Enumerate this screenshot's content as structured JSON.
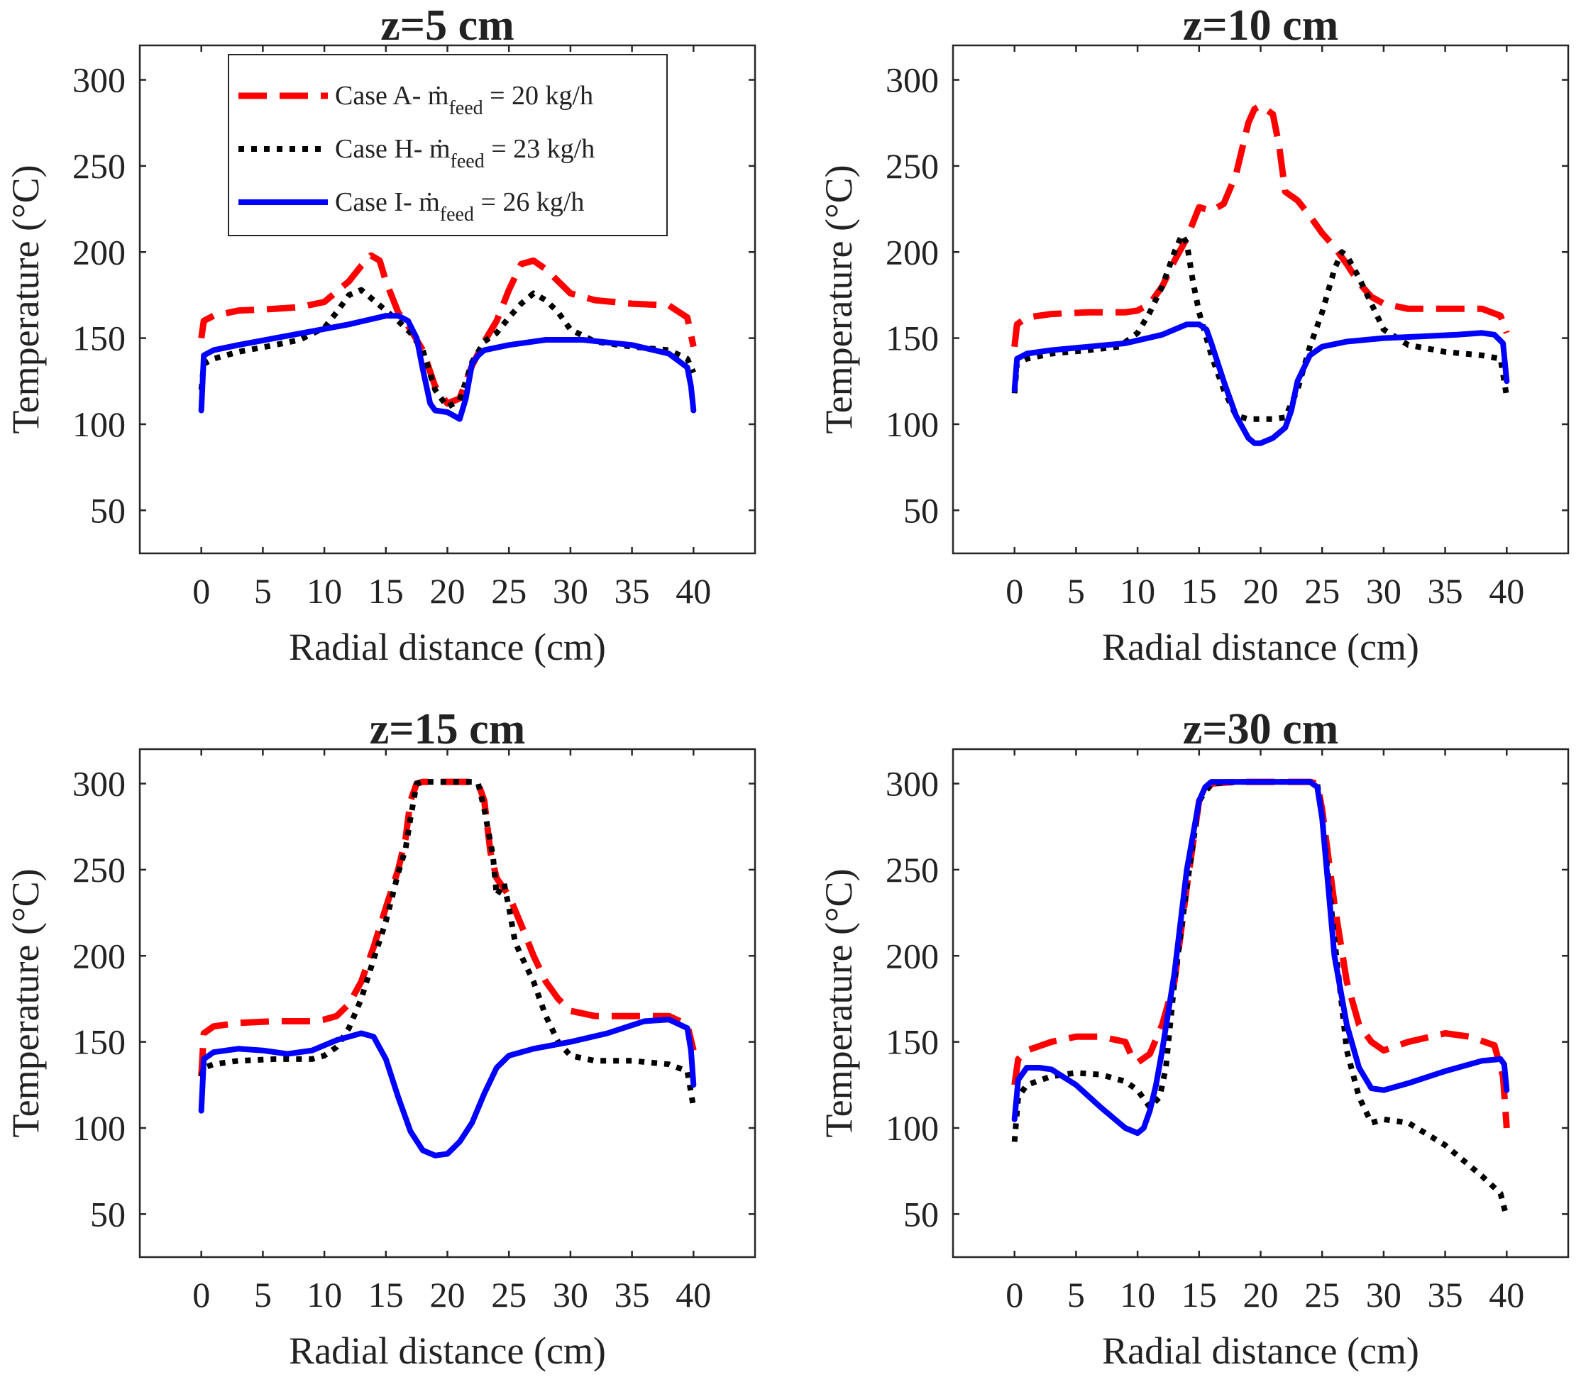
{
  "figure": {
    "legend": [
      {
        "prefix": "Case A-",
        "mdot": "ṁ",
        "sub": "feed",
        "suffix": "= 20 kg/h",
        "color": "#ff0000",
        "style": "dashed"
      },
      {
        "prefix": "Case H-",
        "mdot": "ṁ",
        "sub": "feed",
        "suffix": "= 23 kg/h",
        "color": "#000000",
        "style": "dotted"
      },
      {
        "prefix": "Case I-",
        "mdot": "ṁ",
        "sub": "feed",
        "suffix": "= 26 kg/h",
        "color": "#0000ff",
        "style": "solid"
      }
    ]
  },
  "chart_data": [
    {
      "type": "line",
      "title": "z=5 cm",
      "xlabel": "Radial distance (cm)",
      "ylabel": "Temperature (°C)",
      "xlim": [
        -5,
        45
      ],
      "ylim": [
        25,
        320
      ],
      "xticks": [
        0,
        5,
        10,
        15,
        20,
        25,
        30,
        35,
        40
      ],
      "yticks": [
        50,
        100,
        150,
        200,
        250,
        300
      ],
      "series": [
        {
          "name": "Case A- ṁfeed = 20 kg/h",
          "x": [
            0,
            0.2,
            1,
            3,
            6,
            8,
            10,
            12,
            13,
            13.8,
            14.5,
            15,
            16,
            17,
            18,
            19,
            20,
            21,
            22,
            23,
            24,
            25,
            26,
            27,
            28,
            29,
            30,
            32,
            35,
            38,
            39.5,
            40
          ],
          "y": [
            150,
            160,
            163,
            166,
            167,
            168,
            171,
            183,
            192,
            198,
            195,
            183,
            165,
            155,
            143,
            122,
            112,
            115,
            134,
            148,
            160,
            178,
            193,
            195,
            190,
            183,
            176,
            172,
            170,
            169,
            162,
            145
          ]
        },
        {
          "name": "Case H- ṁfeed = 23 kg/h",
          "x": [
            0,
            0.2,
            1,
            3,
            6,
            8,
            10,
            11,
            12,
            13,
            14,
            15,
            16,
            17,
            18,
            19,
            20,
            21,
            22,
            23,
            24,
            25,
            26,
            27,
            28,
            29,
            30,
            32,
            35,
            38,
            39.5,
            40
          ],
          "y": [
            120,
            135,
            138,
            142,
            146,
            149,
            156,
            165,
            175,
            178,
            172,
            166,
            160,
            153,
            143,
            120,
            110,
            114,
            136,
            148,
            153,
            162,
            170,
            176,
            172,
            165,
            155,
            148,
            145,
            143,
            138,
            130
          ]
        },
        {
          "name": "Case I- ṁfeed = 26 kg/h",
          "x": [
            0,
            0.2,
            1,
            3,
            6,
            9,
            12,
            15,
            16,
            16.8,
            17.5,
            18,
            18.6,
            19,
            20,
            20.5,
            21,
            21.5,
            22,
            22.5,
            23,
            25,
            28,
            31,
            35,
            38,
            39.5,
            39.8,
            40
          ],
          "y": [
            108,
            140,
            143,
            146,
            150,
            154,
            158,
            163,
            163,
            160,
            150,
            132,
            112,
            108,
            107,
            105,
            103,
            115,
            135,
            140,
            143,
            146,
            149,
            149,
            146,
            141,
            133,
            122,
            108
          ]
        }
      ]
    },
    {
      "type": "line",
      "title": "z=10 cm",
      "xlabel": "Radial distance (cm)",
      "ylabel": "Temperature (°C)",
      "xlim": [
        -5,
        45
      ],
      "ylim": [
        25,
        320
      ],
      "xticks": [
        0,
        5,
        10,
        15,
        20,
        25,
        30,
        35,
        40
      ],
      "yticks": [
        50,
        100,
        150,
        200,
        250,
        300
      ],
      "series": [
        {
          "name": "Case A- ṁfeed = 20 kg/h",
          "x": [
            0,
            0.2,
            1,
            3,
            6,
            9,
            10,
            11,
            12,
            13,
            14,
            15,
            16,
            17,
            18,
            19,
            19.5,
            20,
            21,
            21.5,
            22,
            23,
            24,
            25,
            26,
            27,
            28,
            29,
            30,
            32,
            35,
            38,
            39.5,
            40
          ],
          "y": [
            145,
            158,
            162,
            164,
            165,
            165,
            166,
            170,
            180,
            195,
            208,
            226,
            224,
            228,
            245,
            275,
            283,
            285,
            280,
            262,
            235,
            230,
            221,
            211,
            203,
            193,
            182,
            174,
            170,
            167,
            167,
            167,
            163,
            153
          ]
        },
        {
          "name": "Case H- ṁfeed = 23 kg/h",
          "x": [
            0,
            0.2,
            1,
            3,
            6,
            8.5,
            10,
            11,
            12,
            13,
            13.6,
            14,
            14.5,
            15,
            16,
            17,
            18,
            19,
            20,
            21,
            22,
            23,
            24,
            25,
            26,
            26.6,
            27,
            28,
            29,
            30,
            32,
            35,
            38,
            39.5,
            40
          ],
          "y": [
            118,
            135,
            138,
            141,
            143,
            145,
            153,
            165,
            180,
            200,
            210,
            205,
            183,
            165,
            140,
            120,
            105,
            103,
            103,
            103,
            104,
            120,
            145,
            165,
            190,
            200,
            198,
            185,
            170,
            155,
            146,
            142,
            140,
            138,
            116
          ]
        },
        {
          "name": "Case I- ṁfeed = 26 kg/h",
          "x": [
            0,
            0.2,
            1,
            3,
            6,
            9,
            12,
            14,
            15,
            15.6,
            16,
            17,
            18,
            19,
            19.5,
            20,
            21,
            22,
            22.5,
            23,
            24,
            25,
            27,
            30,
            33,
            36,
            38,
            39,
            39.7,
            40
          ],
          "y": [
            120,
            138,
            141,
            143,
            145,
            147,
            152,
            158,
            158,
            155,
            147,
            125,
            105,
            92,
            89,
            89,
            92,
            98,
            108,
            125,
            140,
            145,
            148,
            150,
            151,
            152,
            153,
            152,
            147,
            125
          ]
        }
      ]
    },
    {
      "type": "line",
      "title": "z=15 cm",
      "xlabel": "Radial distance (cm)",
      "ylabel": "Temperature (°C)",
      "xlim": [
        -5,
        45
      ],
      "ylim": [
        25,
        320
      ],
      "xticks": [
        0,
        5,
        10,
        15,
        20,
        25,
        30,
        35,
        40
      ],
      "yticks": [
        50,
        100,
        150,
        200,
        250,
        300
      ],
      "series": [
        {
          "name": "Case A- ṁfeed = 20 kg/h",
          "x": [
            0,
            0.2,
            1,
            3,
            6,
            9,
            10,
            11,
            12,
            13,
            14,
            15,
            16,
            16.6,
            17,
            17.5,
            18,
            19,
            20,
            21,
            22,
            22.5,
            23,
            23.5,
            24,
            25,
            26,
            27,
            28,
            29,
            30,
            32,
            35,
            38,
            39.5,
            40
          ],
          "y": [
            130,
            155,
            159,
            161,
            162,
            162,
            163,
            165,
            172,
            185,
            205,
            228,
            250,
            268,
            290,
            300,
            301,
            301,
            301,
            301,
            301,
            300,
            290,
            260,
            245,
            235,
            218,
            200,
            185,
            175,
            168,
            165,
            165,
            165,
            160,
            145
          ]
        },
        {
          "name": "Case H- ṁfeed = 23 kg/h",
          "x": [
            0,
            0.2,
            1,
            3,
            6,
            9,
            10,
            11,
            12,
            13,
            14,
            15,
            16,
            16.6,
            17,
            17.5,
            18,
            19,
            20,
            21,
            22,
            22.5,
            23,
            23.7,
            24,
            24.6,
            25,
            25.5,
            26,
            27,
            28,
            29,
            30,
            32,
            35,
            38,
            39.5,
            40
          ],
          "y": [
            130,
            135,
            137,
            139,
            140,
            140,
            142,
            147,
            158,
            175,
            198,
            220,
            248,
            262,
            280,
            300,
            301,
            301,
            301,
            301,
            301,
            300,
            285,
            258,
            235,
            242,
            228,
            208,
            200,
            185,
            165,
            150,
            142,
            139,
            139,
            137,
            133,
            112
          ]
        },
        {
          "name": "Case I- ṁfeed = 26 kg/h",
          "x": [
            0,
            0.2,
            1,
            3,
            5,
            7,
            9,
            11,
            13,
            14,
            15,
            16,
            17,
            18,
            19,
            20,
            21,
            22,
            23,
            24,
            25,
            27,
            30,
            33,
            36,
            38,
            39.5,
            39.8,
            40
          ],
          "y": [
            110,
            140,
            144,
            146,
            145,
            143,
            145,
            151,
            155,
            153,
            140,
            118,
            98,
            87,
            84,
            85,
            92,
            103,
            120,
            135,
            142,
            146,
            150,
            155,
            162,
            163,
            158,
            145,
            125
          ]
        }
      ]
    },
    {
      "type": "line",
      "title": "z=30 cm",
      "xlabel": "Radial distance (cm)",
      "ylabel": "Temperature (°C)",
      "xlim": [
        -5,
        45
      ],
      "ylim": [
        25,
        320
      ],
      "xticks": [
        0,
        5,
        10,
        15,
        20,
        25,
        30,
        35,
        40
      ],
      "yticks": [
        50,
        100,
        150,
        200,
        250,
        300
      ],
      "series": [
        {
          "name": "Case A- ṁfeed = 20 kg/h",
          "x": [
            0,
            0.3,
            1,
            3,
            5,
            7,
            9,
            9.5,
            10,
            11,
            12,
            13,
            14,
            15,
            16,
            18,
            20,
            22,
            24,
            24.6,
            25,
            26,
            27,
            28,
            29,
            30,
            32,
            35,
            37,
            39,
            39.7,
            40
          ],
          "y": [
            125,
            140,
            145,
            150,
            153,
            153,
            150,
            142,
            138,
            143,
            160,
            185,
            240,
            290,
            300,
            301,
            301,
            301,
            301,
            300,
            285,
            230,
            185,
            160,
            150,
            145,
            150,
            155,
            153,
            148,
            130,
            100
          ]
        },
        {
          "name": "Case H- ṁfeed = 23 kg/h",
          "x": [
            0,
            0.3,
            1,
            3,
            5,
            7,
            9,
            10,
            11,
            11.8,
            12.3,
            13,
            14,
            15,
            16,
            18,
            20,
            22,
            24,
            24.6,
            25,
            26,
            27,
            28,
            29,
            30,
            32,
            35,
            38,
            39.5,
            40
          ],
          "y": [
            92,
            118,
            125,
            130,
            132,
            131,
            127,
            122,
            112,
            118,
            135,
            185,
            240,
            290,
            300,
            301,
            301,
            301,
            301,
            300,
            280,
            210,
            145,
            118,
            103,
            105,
            103,
            90,
            72,
            62,
            48
          ]
        },
        {
          "name": "Case I- ṁfeed = 26 kg/h",
          "x": [
            0,
            0.3,
            1,
            2,
            3,
            5,
            7,
            9,
            10,
            10.5,
            11,
            11.5,
            12,
            13,
            14,
            15,
            15.5,
            16,
            18,
            20,
            22,
            24,
            24.6,
            25,
            26,
            27,
            28,
            29,
            30,
            32,
            35,
            38,
            39.5,
            39.8,
            40
          ],
          "y": [
            105,
            128,
            135,
            135,
            134,
            125,
            112,
            100,
            97,
            100,
            110,
            125,
            145,
            190,
            250,
            290,
            298,
            301,
            301,
            301,
            301,
            301,
            298,
            280,
            200,
            160,
            135,
            123,
            122,
            126,
            133,
            139,
            140,
            137,
            122
          ]
        }
      ]
    }
  ]
}
